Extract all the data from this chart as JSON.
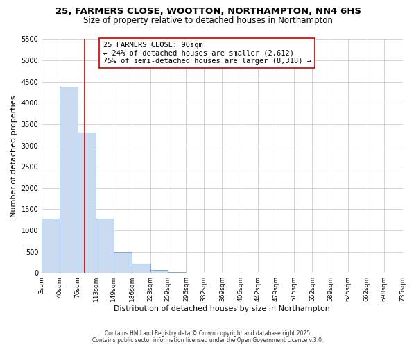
{
  "title": "25, FARMERS CLOSE, WOOTTON, NORTHAMPTON, NN4 6HS",
  "subtitle": "Size of property relative to detached houses in Northampton",
  "xlabel": "Distribution of detached houses by size in Northampton",
  "ylabel": "Number of detached properties",
  "bin_edges": [
    3,
    40,
    76,
    113,
    149,
    186,
    223,
    259,
    296,
    332,
    369,
    406,
    442,
    479,
    515,
    552,
    589,
    625,
    662,
    698,
    735
  ],
  "bar_heights": [
    1270,
    4380,
    3300,
    1280,
    500,
    220,
    75,
    20,
    5,
    2,
    1,
    0,
    0,
    0,
    0,
    0,
    0,
    0,
    0,
    0
  ],
  "bar_facecolor": "#c9d9f0",
  "bar_edgecolor": "#6b9fd4",
  "property_size": 90,
  "vline_color": "#cc0000",
  "annotation_line1": "25 FARMERS CLOSE: 90sqm",
  "annotation_line2": "← 24% of detached houses are smaller (2,612)",
  "annotation_line3": "75% of semi-detached houses are larger (8,318) →",
  "annotation_box_edgecolor": "#cc0000",
  "annotation_box_facecolor": "#ffffff",
  "ylim": [
    0,
    5500
  ],
  "yticks": [
    0,
    500,
    1000,
    1500,
    2000,
    2500,
    3000,
    3500,
    4000,
    4500,
    5000,
    5500
  ],
  "grid_color": "#cccccc",
  "background_color": "#ffffff",
  "footer_line1": "Contains HM Land Registry data © Crown copyright and database right 2025.",
  "footer_line2": "Contains public sector information licensed under the Open Government Licence v.3.0.",
  "title_fontsize": 9.5,
  "subtitle_fontsize": 8.5,
  "tick_label_fontsize": 6.5,
  "axis_label_fontsize": 8,
  "annotation_fontsize": 7.5,
  "footer_fontsize": 5.5
}
